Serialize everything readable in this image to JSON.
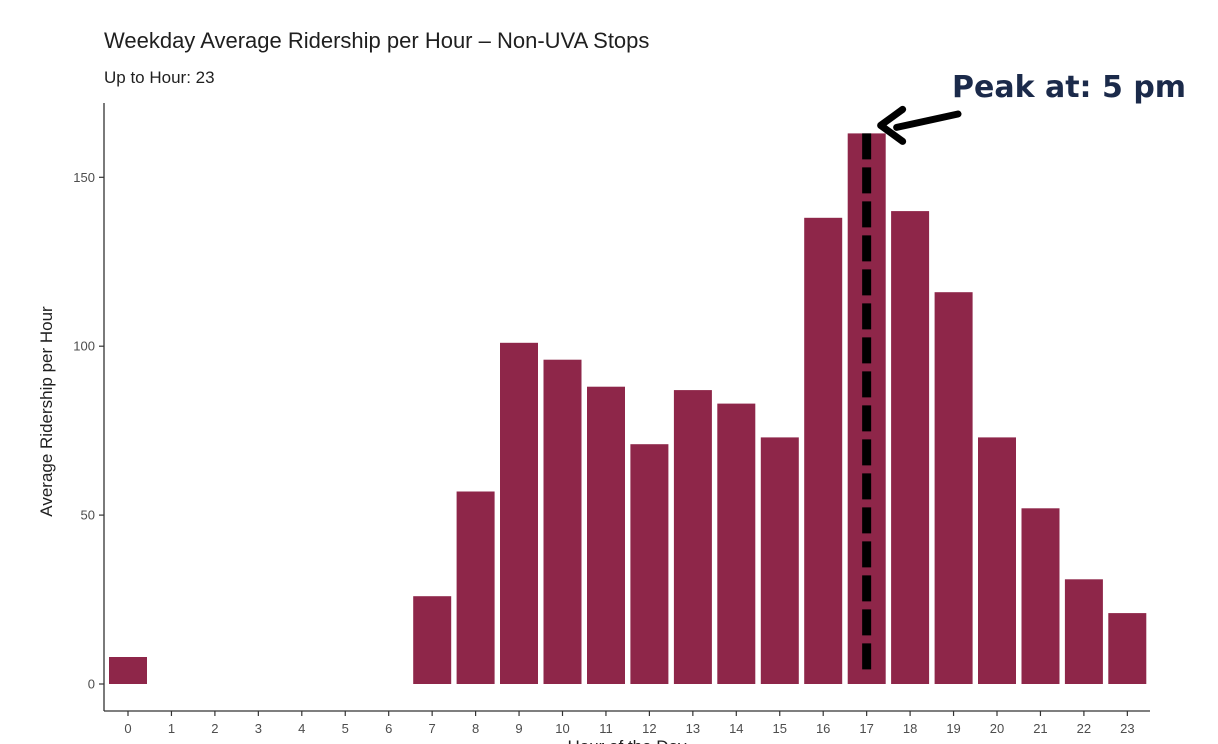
{
  "chart_data": {
    "type": "bar",
    "title": "Weekday Average Ridership per Hour – Non-UVA Stops",
    "subtitle": "Up to Hour: 23",
    "xlabel": "Hour of the Day",
    "ylabel": "Average Ridership per Hour",
    "categories": [
      "0",
      "1",
      "2",
      "3",
      "4",
      "5",
      "6",
      "7",
      "8",
      "9",
      "10",
      "11",
      "12",
      "13",
      "14",
      "15",
      "16",
      "17",
      "18",
      "19",
      "20",
      "21",
      "22",
      "23"
    ],
    "values": [
      8,
      0,
      0,
      0,
      0,
      0,
      0,
      26,
      57,
      101,
      96,
      88,
      71,
      87,
      83,
      73,
      138,
      163,
      140,
      116,
      73,
      52,
      31,
      21
    ],
    "ylim": [
      0,
      170
    ],
    "yticks": [
      0,
      50,
      100,
      150
    ],
    "bar_color": "#8e2649",
    "grid": false,
    "peak_line": {
      "x": "17",
      "color": "#000000",
      "style": "dashed"
    },
    "annotation": {
      "text": "Peak at: 5 pm",
      "color": "#1b2a4a",
      "arrow_color": "#000000",
      "target": "17"
    }
  }
}
